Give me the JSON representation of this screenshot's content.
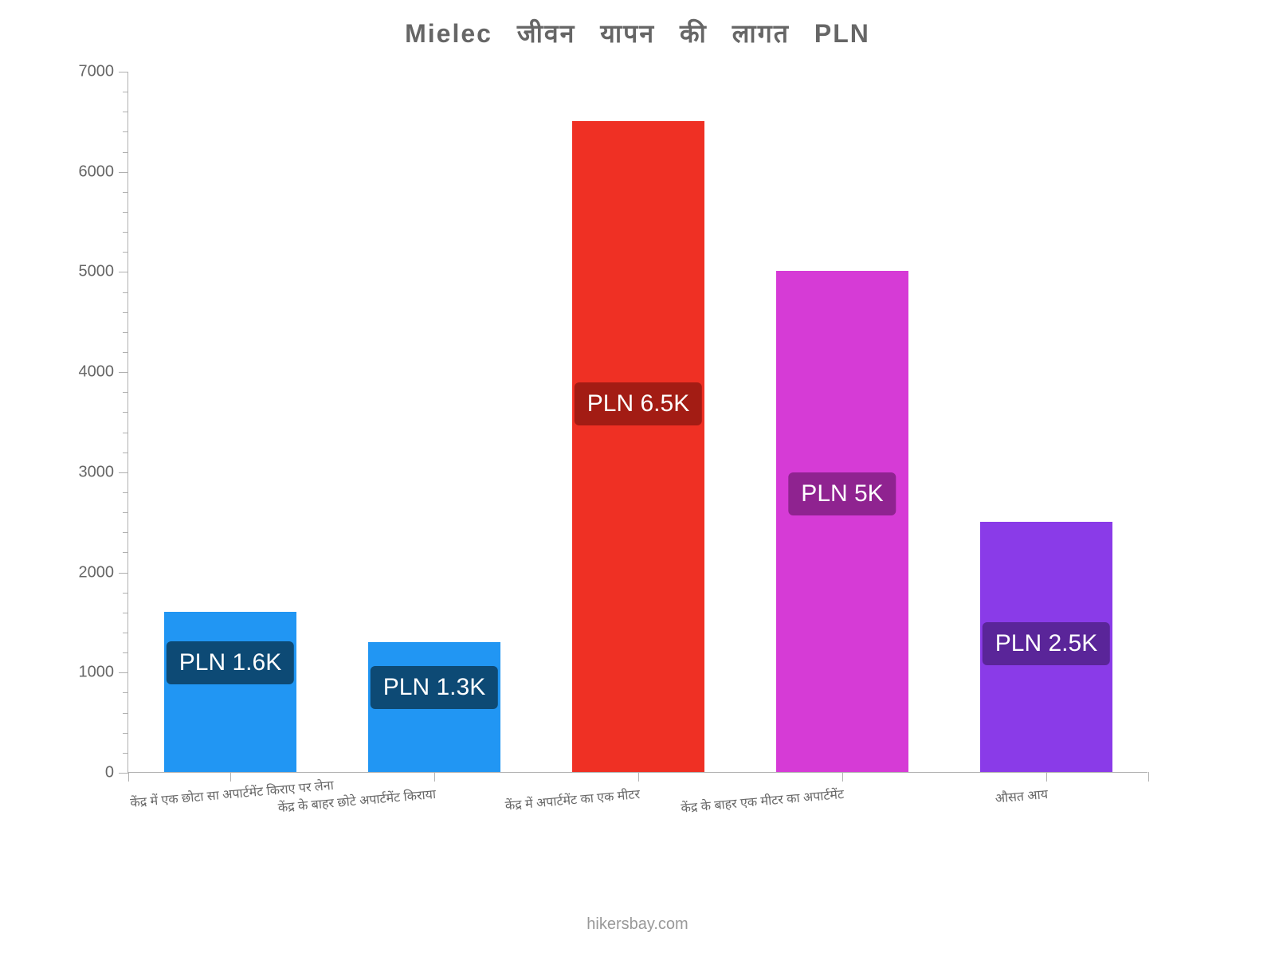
{
  "chart": {
    "type": "bar",
    "title": "Mielec जीवन यापन की लागत PLN",
    "title_fontsize": 32,
    "title_color": "#666666",
    "background_color": "#ffffff",
    "axis_color": "#b0b0b0",
    "tick_label_color": "#666666",
    "tick_label_fontsize": 20,
    "x_label_fontsize": 16,
    "x_label_rotation_deg": -5,
    "ylim": [
      0,
      7000
    ],
    "ytick_step": 1000,
    "ytick_minor_step": 200,
    "bar_width_ratio": 0.65,
    "categories": [
      "केंद्र में एक छोटा सा अपार्टमेंट किराए पर लेना",
      "केंद्र के बाहर छोटे अपार्टमेंट किराया",
      "केंद्र में अपार्टमेंट का एक मीटर",
      "केंद्र के बाहर एक मीटर का अपार्टमेंट",
      "औसत आय"
    ],
    "values": [
      1600,
      1300,
      6500,
      5000,
      2500
    ],
    "bar_colors": [
      "#2196f3",
      "#2196f3",
      "#ef3024",
      "#d63bd6",
      "#8a3be8"
    ],
    "data_labels": [
      "PLN 1.6K",
      "PLN 1.3K",
      "PLN 6.5K",
      "PLN 5K",
      "PLN 2.5K"
    ],
    "data_label_bg": [
      "#0d4a75",
      "#0d4a75",
      "#a31c14",
      "#8f2390",
      "#5a2599"
    ],
    "data_label_color": "#ffffff",
    "data_label_fontsize": 30,
    "y_tick_labels": [
      "0",
      "1000",
      "2000",
      "3000",
      "4000",
      "5000",
      "6000",
      "7000"
    ],
    "attribution": "hikersbay.com",
    "attribution_color": "#999999",
    "attribution_fontsize": 20
  }
}
